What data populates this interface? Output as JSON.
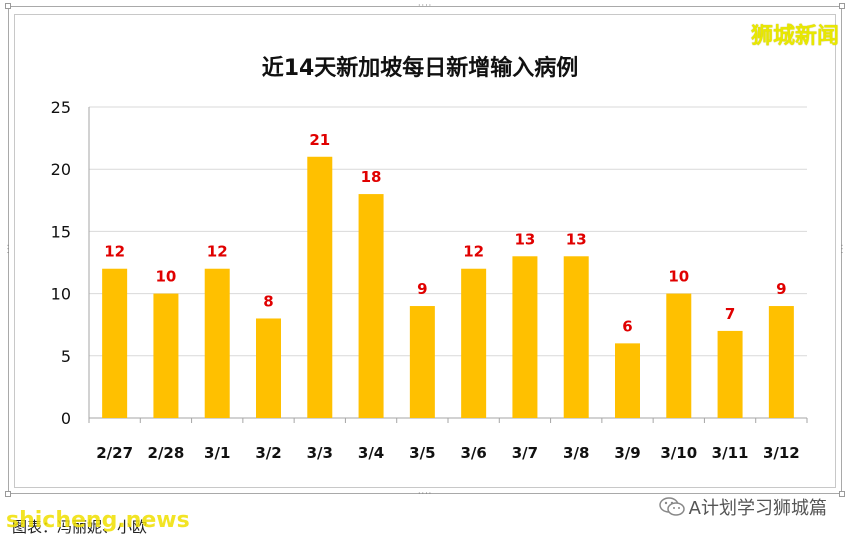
{
  "brand": "狮城新闻",
  "source_label": "图表：冯丽妮、小欧",
  "watermark": "shicheng.news",
  "wechat_label": "A计划学习狮城篇",
  "colors": {
    "bar": "#FFC000",
    "data_label": "#E00000",
    "grid": "#D9D9D9",
    "axis": "#A6A6A6",
    "brand": "#E8E800"
  },
  "chart_data": {
    "type": "bar",
    "title": "近14天新加坡每日新增输入病例",
    "categories": [
      "2/27",
      "2/28",
      "3/1",
      "3/2",
      "3/3",
      "3/4",
      "3/5",
      "3/6",
      "3/7",
      "3/8",
      "3/9",
      "3/10",
      "3/11",
      "3/12"
    ],
    "values": [
      12,
      10,
      12,
      8,
      21,
      18,
      9,
      12,
      13,
      13,
      6,
      10,
      7,
      9
    ],
    "yticks": [
      0,
      5,
      10,
      15,
      20,
      25
    ],
    "ylim": [
      0,
      25
    ],
    "xlabel": "",
    "ylabel": "",
    "grid": true,
    "legend": "none"
  }
}
